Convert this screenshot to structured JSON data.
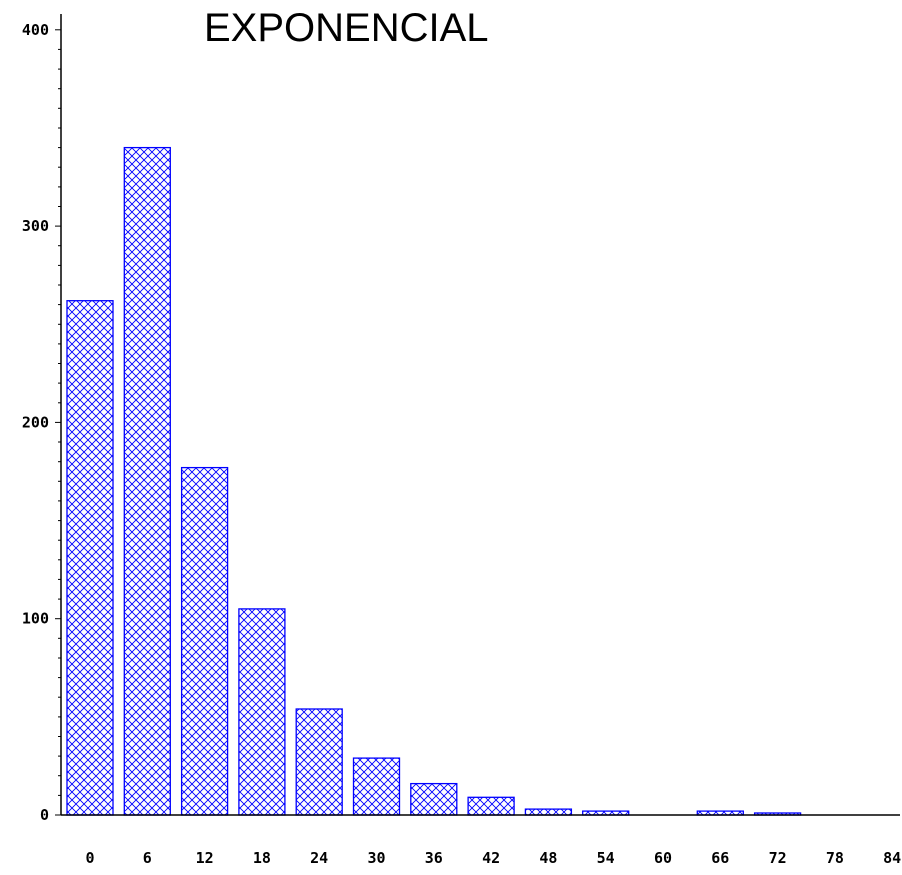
{
  "chart_data": {
    "type": "bar",
    "title": "EXPONENCIAL",
    "xlabel": "",
    "ylabel": "",
    "categories": [
      "0",
      "6",
      "12",
      "18",
      "24",
      "30",
      "36",
      "42",
      "48",
      "54",
      "60",
      "66",
      "72",
      "78",
      "84"
    ],
    "values": [
      262,
      340,
      177,
      105,
      54,
      29,
      16,
      9,
      3,
      2,
      0,
      2,
      1,
      0,
      0
    ],
    "ylim": [
      0,
      405
    ],
    "yticks": [
      "0",
      "100",
      "200",
      "300",
      "400"
    ],
    "grid": false,
    "legend": "none",
    "bar_color": "#0000ff",
    "bar_fill": "crosshatch"
  }
}
